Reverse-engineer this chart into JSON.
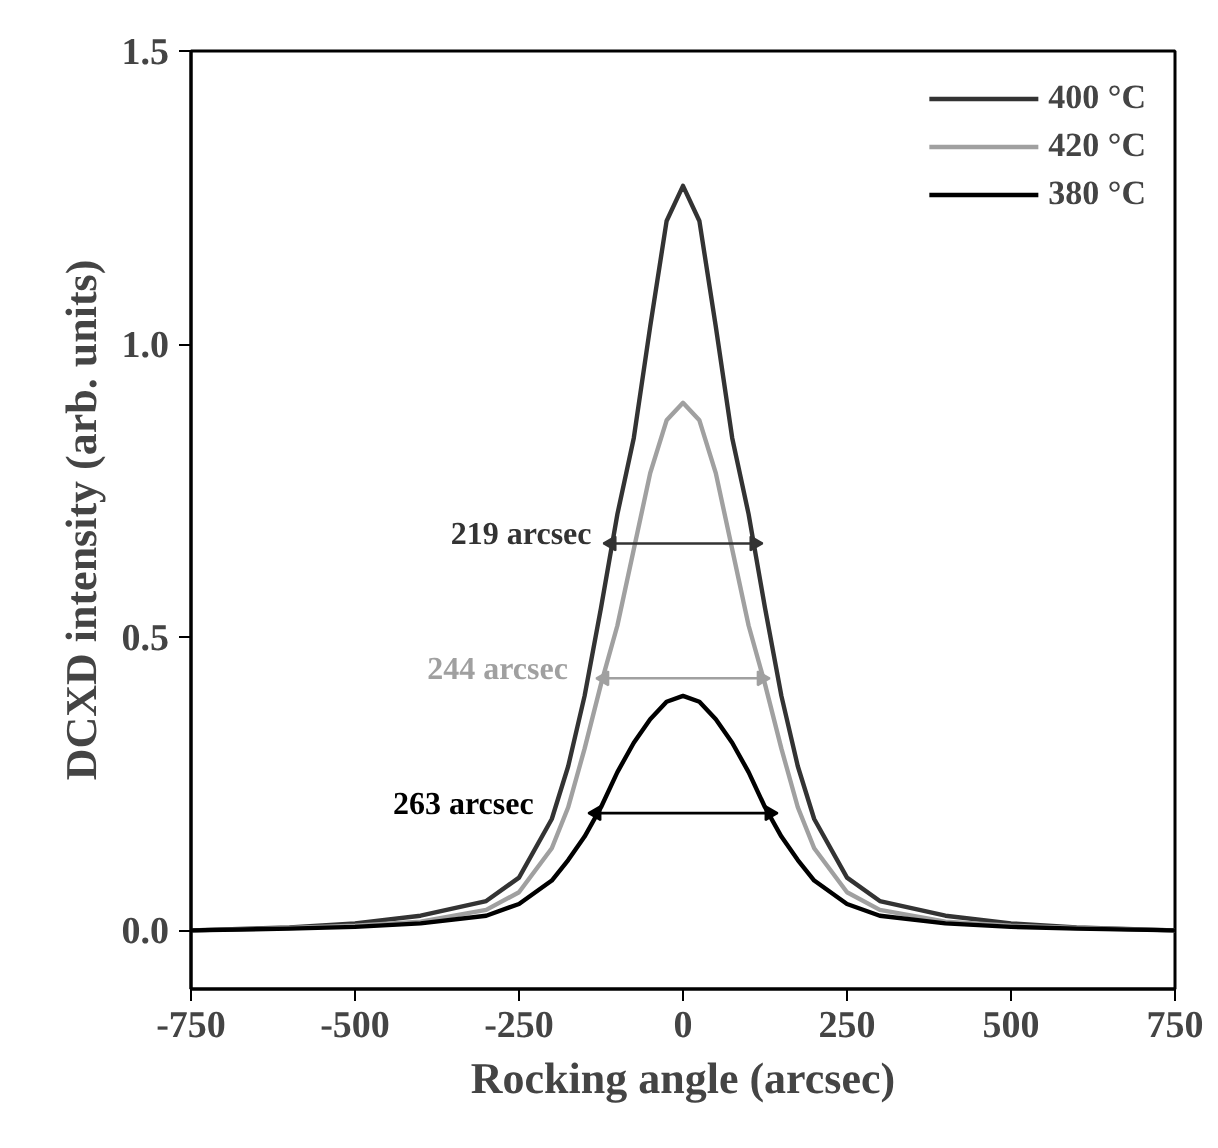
{
  "chart_data": {
    "type": "line",
    "xlabel": "Rocking angle (arcsec)",
    "ylabel": "DCXD intensity (arb. units)",
    "xlim": [
      -750,
      750
    ],
    "xticks": [
      -750,
      -500,
      -250,
      0,
      250,
      500,
      750
    ],
    "ylim": [
      -0.1,
      1.5
    ],
    "yticks": [
      {
        "value": 0,
        "label": "0.0"
      },
      0.5,
      {
        "value": 1,
        "label": "1.0"
      },
      1.5
    ],
    "grid": false,
    "legend": "top right",
    "marker": "none",
    "line_style": "solid",
    "x": [
      -750,
      -600,
      -500,
      -400,
      -300,
      -250,
      -200,
      -175,
      -150,
      -125,
      -100,
      -75,
      -50,
      -25,
      0,
      25,
      50,
      75,
      100,
      125,
      150,
      175,
      200,
      250,
      300,
      400,
      500,
      600,
      750
    ],
    "series": [
      {
        "name": "400 °C",
        "color": "#333333",
        "values": [
          0,
          0.005,
          0.012,
          0.025,
          0.05,
          0.09,
          0.19,
          0.28,
          0.4,
          0.55,
          0.71,
          0.84,
          1.03,
          1.21,
          1.27,
          1.21,
          1.03,
          0.84,
          0.71,
          0.55,
          0.4,
          0.28,
          0.19,
          0.09,
          0.05,
          0.025,
          0.012,
          0.005,
          0
        ]
      },
      {
        "name": "420 °C",
        "color": "#a0a0a0",
        "values": [
          0,
          0.004,
          0.008,
          0.015,
          0.035,
          0.065,
          0.14,
          0.21,
          0.31,
          0.42,
          0.52,
          0.65,
          0.78,
          0.87,
          0.9,
          0.87,
          0.78,
          0.65,
          0.52,
          0.42,
          0.31,
          0.21,
          0.14,
          0.065,
          0.035,
          0.015,
          0.008,
          0.004,
          0
        ]
      },
      {
        "name": "380 °C",
        "color": "#000000",
        "values": [
          0,
          0.003,
          0.006,
          0.012,
          0.025,
          0.045,
          0.085,
          0.12,
          0.16,
          0.21,
          0.27,
          0.32,
          0.36,
          0.39,
          0.4,
          0.39,
          0.36,
          0.32,
          0.27,
          0.21,
          0.16,
          0.12,
          0.085,
          0.045,
          0.025,
          0.012,
          0.006,
          0.003,
          0
        ]
      },
      {
        "type": "line",
        "color": "#333333",
        "marker": "triangle",
        "x": [
          -109,
          109
        ],
        "values": [
          0.66,
          0.66
        ]
      },
      {
        "type": "line",
        "color": "#a0a0a0",
        "marker": "triangle",
        "x": [
          -120,
          120
        ],
        "values": [
          0.43,
          0.43
        ]
      },
      {
        "type": "line",
        "color": "#000000",
        "marker": "triangle",
        "x": [
          -132,
          132
        ],
        "values": [
          0.2,
          0.2
        ]
      }
    ],
    "annotations": [
      "219 arcsec",
      "244 arcsec",
      "263 arcsec"
    ]
  }
}
